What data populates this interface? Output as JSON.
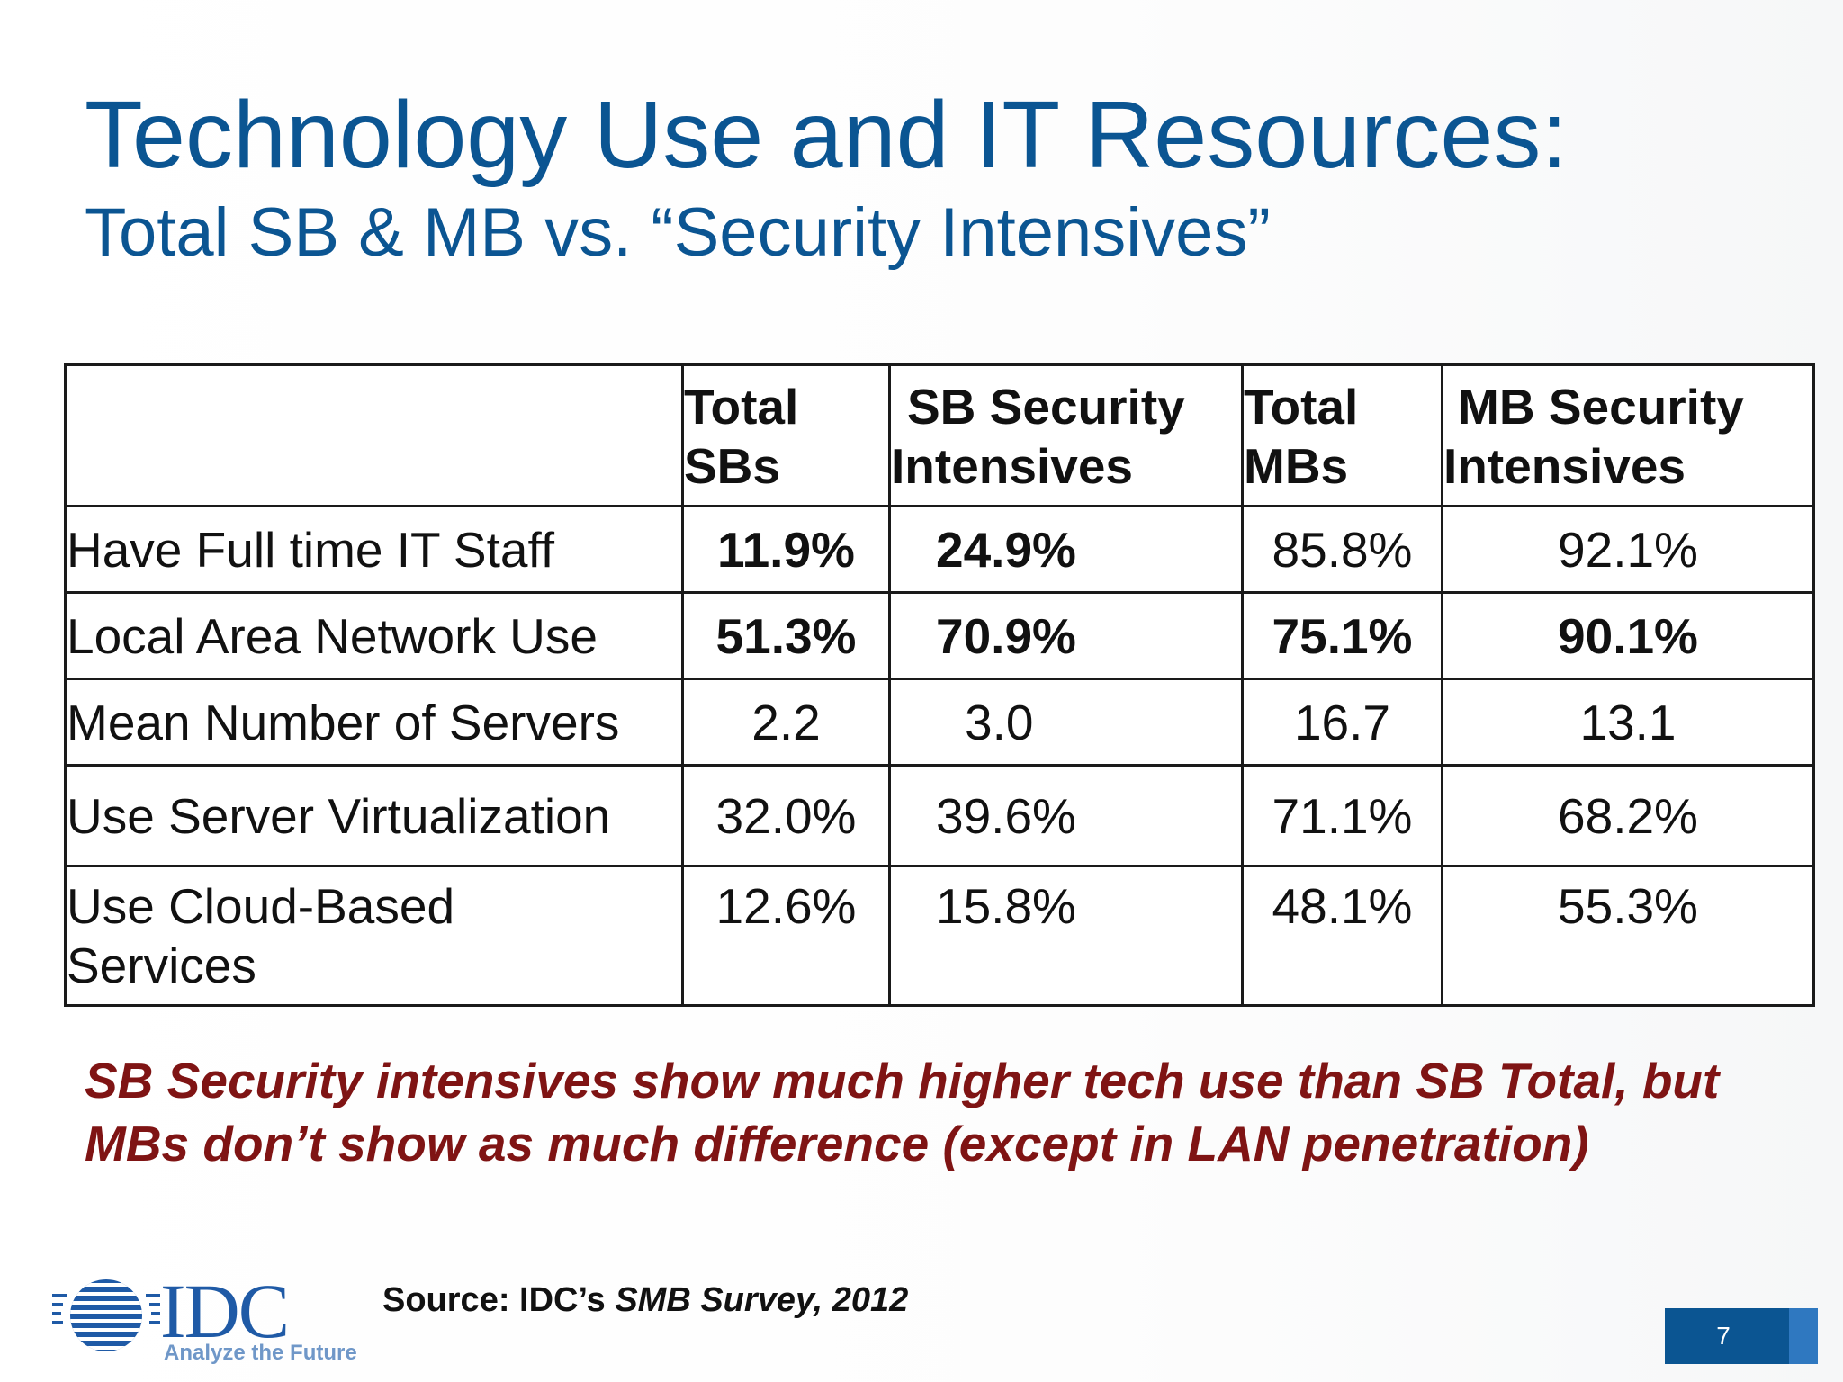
{
  "slide": {
    "title": "Technology Use and IT Resources:",
    "subtitle": "Total SB & MB vs. “Security Intensives”"
  },
  "table": {
    "headers": [
      {
        "line1": "Total",
        "line2": "SBs"
      },
      {
        "line1": "SB Security",
        "line2": "Intensives"
      },
      {
        "line1": "Total",
        "line2": "MBs"
      },
      {
        "line1": "MB Security",
        "line2": "Intensives"
      }
    ],
    "rows": [
      {
        "label": "Have Full time IT Staff",
        "values": [
          "11.9%",
          "24.9%",
          "85.8%",
          "92.1%"
        ]
      },
      {
        "label": "Local Area Network Use",
        "values": [
          "51.3%",
          "70.9%",
          "75.1%",
          "90.1%"
        ]
      },
      {
        "label": "Mean Number of Servers",
        "values": [
          "2.2",
          "3.0",
          "16.7",
          "13.1"
        ]
      },
      {
        "label": "Use Server Virtualization",
        "values": [
          "32.0%",
          "39.6%",
          "71.1%",
          "68.2%"
        ]
      },
      {
        "label_line1": "Use Cloud-Based",
        "label_line2": "Services",
        "values": [
          "12.6%",
          "15.8%",
          "48.1%",
          "55.3%"
        ]
      }
    ]
  },
  "note": {
    "line1": "SB Security intensives show much higher tech use than SB Total, but",
    "line2": "MBs don’t show as much difference (except in LAN penetration)"
  },
  "footer": {
    "logo_text": "IDC",
    "logo_tagline": "Analyze the Future",
    "source_prefix": "Source: IDC’s ",
    "source_italic": "SMB Survey, 2012",
    "page_number": "7"
  },
  "colors": {
    "title": "#0b5592",
    "note": "#7f1414",
    "page_box": "#0b5592",
    "logo": "#1f5aa6"
  }
}
